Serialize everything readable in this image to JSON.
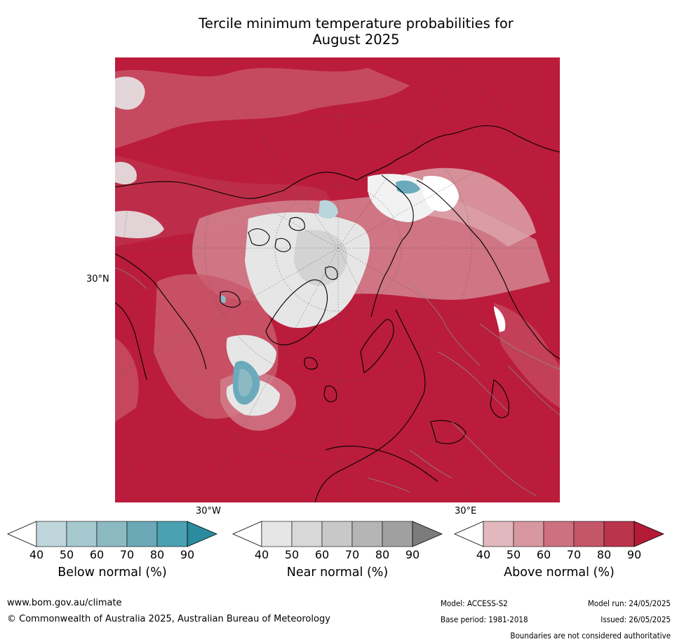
{
  "title_line1": "Tercile minimum temperature probabilities for",
  "title_line2": "August 2025",
  "map": {
    "lat_label": "30°N",
    "lon_labels": [
      "30°W",
      "30°E"
    ],
    "colors": {
      "ocean_base": "#bb1c3b",
      "above_90": "#b71a38",
      "above_80": "#be3550",
      "above_70": "#c9596c",
      "above_60": "#d2808d",
      "above_50": "#dca3aa",
      "near_low": "#e6e6e6",
      "near_mid": "#d3d3d3",
      "below_50": "#b9d6dc",
      "below_70": "#6aaabb",
      "coast": "#000000",
      "borders": "#8a8a8a"
    }
  },
  "colorbars": [
    {
      "label": "Below normal (%)",
      "ticks": [
        "40",
        "50",
        "60",
        "70",
        "80",
        "90"
      ],
      "colors": [
        "#ffffff",
        "#bdd5db",
        "#a6c8cf",
        "#8cbac3",
        "#6ba9b6",
        "#4aa1b1",
        "#2a8c9e"
      ]
    },
    {
      "label": "Near normal (%)",
      "ticks": [
        "40",
        "50",
        "60",
        "70",
        "80",
        "90"
      ],
      "colors": [
        "#ffffff",
        "#e6e6e6",
        "#d8d8d8",
        "#c8c8c8",
        "#b5b5b5",
        "#a0a0a0",
        "#7c7c7c"
      ]
    },
    {
      "label": "Above normal (%)",
      "ticks": [
        "40",
        "50",
        "60",
        "70",
        "80",
        "90"
      ],
      "colors": [
        "#ffffff",
        "#e1b8bd",
        "#d8979f",
        "#cd7080",
        "#c4566a",
        "#ba344c",
        "#b31b37"
      ]
    }
  ],
  "footer": {
    "website": "www.bom.gov.au/climate",
    "copyright": "© Commonwealth of Australia 2025, Australian Bureau of Meteorology",
    "model": "Model: ACCESS-S2",
    "model_run": "Model run: 24/05/2025",
    "base_period": "Base period: 1981-2018",
    "issued": "Issued: 26/05/2025",
    "disclaimer": "Boundaries are not considered authoritative"
  }
}
